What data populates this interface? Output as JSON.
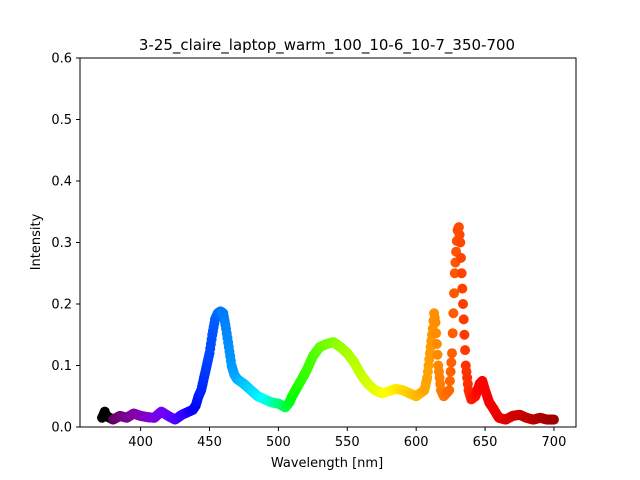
{
  "chart_data": {
    "type": "scatter",
    "title": "3-25_claire_laptop_warm_100_10-6_10-7_350-700",
    "xlabel": "Wavelength [nm]",
    "ylabel": "Intensity",
    "xlim": [
      356,
      716
    ],
    "ylim": [
      0,
      0.6
    ],
    "x_ticks": [
      400,
      450,
      500,
      550,
      600,
      650,
      700
    ],
    "y_ticks": [
      0.0,
      0.1,
      0.2,
      0.3,
      0.4,
      0.5,
      0.6
    ],
    "x_tick_labels": [
      "400",
      "450",
      "500",
      "550",
      "600",
      "650",
      "700"
    ],
    "y_tick_labels": [
      "0.0",
      "0.1",
      "0.2",
      "0.3",
      "0.4",
      "0.5",
      "0.6"
    ],
    "grid": false,
    "marker_color": "wavelength-spectrum",
    "series": [
      {
        "points": [
          [
            372,
            0.015
          ],
          [
            373,
            0.02
          ],
          [
            374,
            0.025
          ],
          [
            375,
            0.018
          ],
          [
            380,
            0.012
          ],
          [
            385,
            0.018
          ],
          [
            390,
            0.015
          ],
          [
            395,
            0.022
          ],
          [
            400,
            0.018
          ],
          [
            405,
            0.016
          ],
          [
            410,
            0.015
          ],
          [
            415,
            0.025
          ],
          [
            420,
            0.018
          ],
          [
            425,
            0.012
          ],
          [
            430,
            0.02
          ],
          [
            435,
            0.025
          ],
          [
            438,
            0.028
          ],
          [
            440,
            0.035
          ],
          [
            442,
            0.05
          ],
          [
            444,
            0.06
          ],
          [
            446,
            0.08
          ],
          [
            448,
            0.1
          ],
          [
            450,
            0.12
          ],
          [
            452,
            0.15
          ],
          [
            454,
            0.175
          ],
          [
            456,
            0.185
          ],
          [
            458,
            0.188
          ],
          [
            460,
            0.185
          ],
          [
            462,
            0.16
          ],
          [
            464,
            0.13
          ],
          [
            466,
            0.1
          ],
          [
            468,
            0.085
          ],
          [
            470,
            0.078
          ],
          [
            475,
            0.07
          ],
          [
            480,
            0.06
          ],
          [
            485,
            0.05
          ],
          [
            490,
            0.045
          ],
          [
            495,
            0.04
          ],
          [
            500,
            0.038
          ],
          [
            505,
            0.032
          ],
          [
            508,
            0.04
          ],
          [
            510,
            0.05
          ],
          [
            515,
            0.07
          ],
          [
            520,
            0.09
          ],
          [
            525,
            0.115
          ],
          [
            530,
            0.13
          ],
          [
            535,
            0.135
          ],
          [
            540,
            0.138
          ],
          [
            545,
            0.13
          ],
          [
            550,
            0.12
          ],
          [
            555,
            0.105
          ],
          [
            560,
            0.085
          ],
          [
            565,
            0.07
          ],
          [
            570,
            0.06
          ],
          [
            575,
            0.055
          ],
          [
            580,
            0.058
          ],
          [
            585,
            0.062
          ],
          [
            590,
            0.06
          ],
          [
            595,
            0.055
          ],
          [
            600,
            0.05
          ],
          [
            603,
            0.055
          ],
          [
            606,
            0.06
          ],
          [
            608,
            0.08
          ],
          [
            610,
            0.12
          ],
          [
            612,
            0.16
          ],
          [
            613,
            0.185
          ],
          [
            614,
            0.17
          ],
          [
            616,
            0.1
          ],
          [
            618,
            0.06
          ],
          [
            620,
            0.05
          ],
          [
            624,
            0.06
          ],
          [
            626,
            0.12
          ],
          [
            628,
            0.25
          ],
          [
            630,
            0.32
          ],
          [
            631,
            0.325
          ],
          [
            632,
            0.3
          ],
          [
            634,
            0.2
          ],
          [
            636,
            0.1
          ],
          [
            638,
            0.06
          ],
          [
            640,
            0.045
          ],
          [
            643,
            0.05
          ],
          [
            646,
            0.07
          ],
          [
            648,
            0.075
          ],
          [
            650,
            0.06
          ],
          [
            653,
            0.04
          ],
          [
            656,
            0.03
          ],
          [
            660,
            0.015
          ],
          [
            665,
            0.012
          ],
          [
            670,
            0.018
          ],
          [
            675,
            0.02
          ],
          [
            680,
            0.015
          ],
          [
            685,
            0.012
          ],
          [
            690,
            0.015
          ],
          [
            695,
            0.012
          ],
          [
            700,
            0.012
          ]
        ]
      }
    ]
  }
}
